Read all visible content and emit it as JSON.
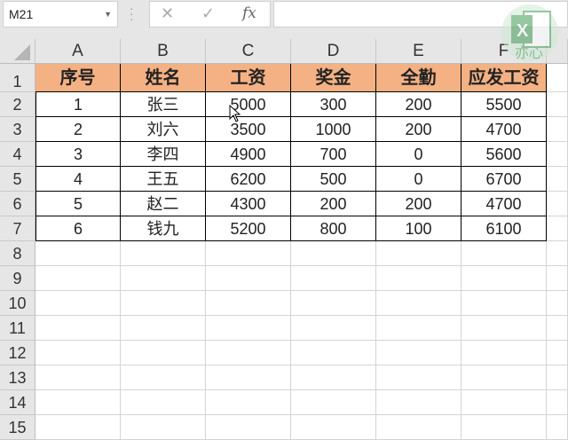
{
  "name_box": {
    "value": "M21"
  },
  "formula_bar": {
    "cancel_icon": "x-icon",
    "enter_icon": "check-icon",
    "fx_label": "fx",
    "value": ""
  },
  "watermark": {
    "text": "亦心",
    "icon": "excel-logo"
  },
  "columns": [
    "A",
    "B",
    "C",
    "D",
    "E",
    "F",
    ""
  ],
  "rows": [
    "1",
    "2",
    "3",
    "4",
    "5",
    "6",
    "7",
    "8",
    "9",
    "10",
    "11",
    "12",
    "13",
    "14",
    "15"
  ],
  "header_fill": "#f4b183",
  "table": {
    "headers": [
      "序号",
      "姓名",
      "工资",
      "奖金",
      "全勤",
      "应发工资"
    ],
    "data": [
      [
        "1",
        "张三",
        "5000",
        "300",
        "200",
        "5500"
      ],
      [
        "2",
        "刘六",
        "3500",
        "1000",
        "200",
        "4700"
      ],
      [
        "3",
        "李四",
        "4900",
        "700",
        "0",
        "5600"
      ],
      [
        "4",
        "王五",
        "6200",
        "500",
        "0",
        "6700"
      ],
      [
        "5",
        "赵二",
        "4300",
        "200",
        "200",
        "4700"
      ],
      [
        "6",
        "钱九",
        "5200",
        "800",
        "100",
        "6100"
      ]
    ]
  }
}
